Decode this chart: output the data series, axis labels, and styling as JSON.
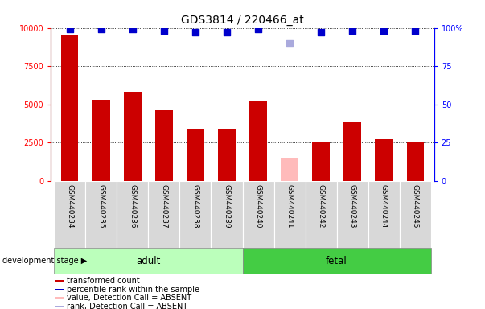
{
  "title": "GDS3814 / 220466_at",
  "samples": [
    "GSM440234",
    "GSM440235",
    "GSM440236",
    "GSM440237",
    "GSM440238",
    "GSM440239",
    "GSM440240",
    "GSM440241",
    "GSM440242",
    "GSM440243",
    "GSM440244",
    "GSM440245"
  ],
  "transformed_count": [
    9500,
    5300,
    5800,
    4600,
    3400,
    3400,
    5200,
    1500,
    2550,
    3800,
    2700,
    2550
  ],
  "absent_mask": [
    false,
    false,
    false,
    false,
    false,
    false,
    false,
    true,
    false,
    false,
    false,
    false
  ],
  "percentile_rank": [
    99,
    99,
    99,
    98,
    97,
    97,
    99,
    90,
    97,
    98,
    98,
    98
  ],
  "absent_rank": [
    false,
    false,
    false,
    false,
    false,
    false,
    false,
    true,
    false,
    false,
    false,
    false
  ],
  "bar_color_normal": "#cc0000",
  "bar_color_absent": "#ffbbbb",
  "dot_color_normal": "#0000cc",
  "dot_color_absent": "#aaaadd",
  "ylim_left": [
    0,
    10000
  ],
  "ylim_right": [
    0,
    100
  ],
  "yticks_left": [
    0,
    2500,
    5000,
    7500,
    10000
  ],
  "yticks_right": [
    0,
    25,
    50,
    75,
    100
  ],
  "adult_label": "adult",
  "fetal_label": "fetal",
  "stage_label": "development stage",
  "adult_color": "#bbffbb",
  "fetal_color": "#44cc44",
  "legend_items": [
    {
      "label": "transformed count",
      "color": "#cc0000"
    },
    {
      "label": "percentile rank within the sample",
      "color": "#0000cc"
    },
    {
      "label": "value, Detection Call = ABSENT",
      "color": "#ffbbbb"
    },
    {
      "label": "rank, Detection Call = ABSENT",
      "color": "#aaaadd"
    }
  ],
  "bar_width": 0.55,
  "background_color": "#ffffff",
  "panel_bg": "#d8d8d8",
  "tick_fontsize": 7,
  "label_fontsize": 7,
  "title_fontsize": 10
}
